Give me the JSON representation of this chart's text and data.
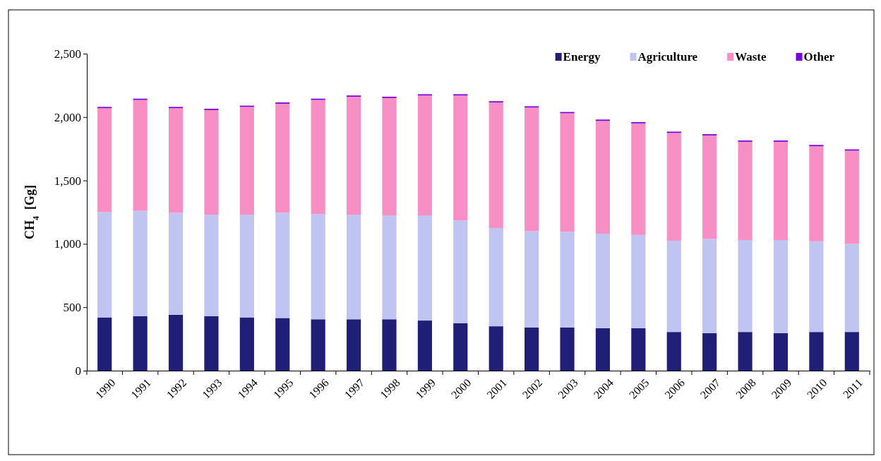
{
  "chart_data": {
    "type": "bar",
    "stacked": true,
    "ylabel": "CH$_{4}$  [Gg]",
    "categories": [
      "1990",
      "1991",
      "1992",
      "1993",
      "1994",
      "1995",
      "1996",
      "1997",
      "1998",
      "1999",
      "2000",
      "2001",
      "2002",
      "2003",
      "2004",
      "2005",
      "2006",
      "2007",
      "2008",
      "2009",
      "2010",
      "2011"
    ],
    "series": [
      {
        "name": "Energy",
        "color": "#1f1f78",
        "values": [
          420,
          430,
          440,
          430,
          420,
          415,
          405,
          405,
          405,
          395,
          375,
          350,
          340,
          340,
          335,
          335,
          305,
          295,
          305,
          295,
          305,
          305
        ]
      },
      {
        "name": "Agriculture",
        "color": "#c0c4f0",
        "values": [
          830,
          830,
          805,
          800,
          810,
          830,
          830,
          825,
          820,
          830,
          810,
          775,
          760,
          755,
          745,
          735,
          720,
          745,
          725,
          735,
          715,
          695
        ]
      },
      {
        "name": "Waste",
        "color": "#f78fc4",
        "values": [
          820,
          875,
          825,
          825,
          850,
          860,
          900,
          930,
          925,
          945,
          985,
          990,
          975,
          935,
          890,
          880,
          850,
          815,
          775,
          775,
          750,
          735
        ]
      },
      {
        "name": "Other",
        "color": "#7a00e0",
        "values": [
          10,
          10,
          10,
          10,
          10,
          10,
          10,
          10,
          10,
          10,
          10,
          10,
          10,
          10,
          10,
          10,
          10,
          10,
          10,
          10,
          10,
          10
        ]
      }
    ],
    "ylim": [
      0,
      2500
    ],
    "yticks": [
      0,
      500,
      {
        "value": 1000,
        "label": "1,000"
      },
      {
        "value": 1500,
        "label": "1,500"
      },
      {
        "value": 2000,
        "label": "2,000"
      },
      {
        "value": 2500,
        "label": "2,500"
      }
    ],
    "grid": false,
    "legend": "top right"
  }
}
